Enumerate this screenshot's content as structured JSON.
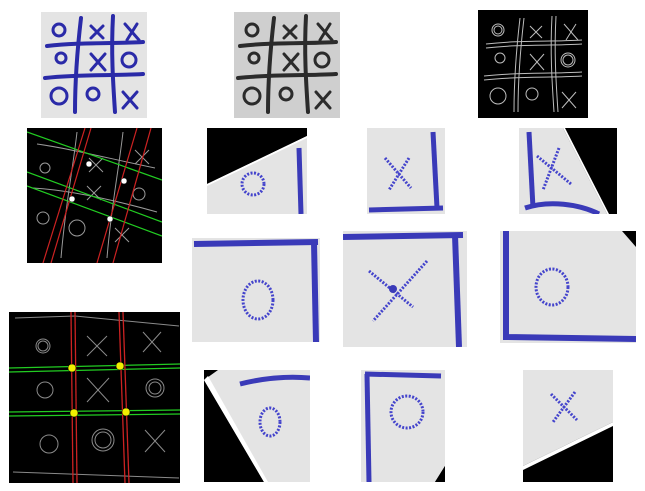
{
  "figure": {
    "panels": [
      {
        "id": "original",
        "kind": "photo",
        "ink": "#2a2a9a"
      },
      {
        "id": "grayscale",
        "kind": "photo",
        "ink": "#2b2b2b"
      },
      {
        "id": "edges",
        "kind": "edge-map",
        "ink": "#bdbdbd"
      },
      {
        "id": "hough-lines",
        "kind": "line-detection",
        "line_colors": [
          "#33cc33",
          "#cc2222"
        ],
        "intersection_color": "#ffffff"
      },
      {
        "id": "grid-lines",
        "kind": "line-detection",
        "line_colors": [
          "#33cc33",
          "#cc2222"
        ],
        "intersection_color": "#f0f000"
      }
    ],
    "cells": [
      {
        "id": "cell-top-left",
        "symbol": "O"
      },
      {
        "id": "cell-top-center",
        "symbol": "X"
      },
      {
        "id": "cell-top-right",
        "symbol": "X"
      },
      {
        "id": "cell-middle-left",
        "symbol": "O"
      },
      {
        "id": "cell-middle-center",
        "symbol": "X"
      },
      {
        "id": "cell-middle-right",
        "symbol": "O"
      },
      {
        "id": "cell-bottom-left",
        "symbol": "O"
      },
      {
        "id": "cell-bottom-center",
        "symbol": "O"
      },
      {
        "id": "cell-bottom-right",
        "symbol": "X"
      }
    ],
    "colors": {
      "paper": "#e4e4e4",
      "ink_blue": "#2a2ab0",
      "ink_chroma": "#cc44cc",
      "black": "#000000",
      "white": "#ffffff"
    }
  }
}
